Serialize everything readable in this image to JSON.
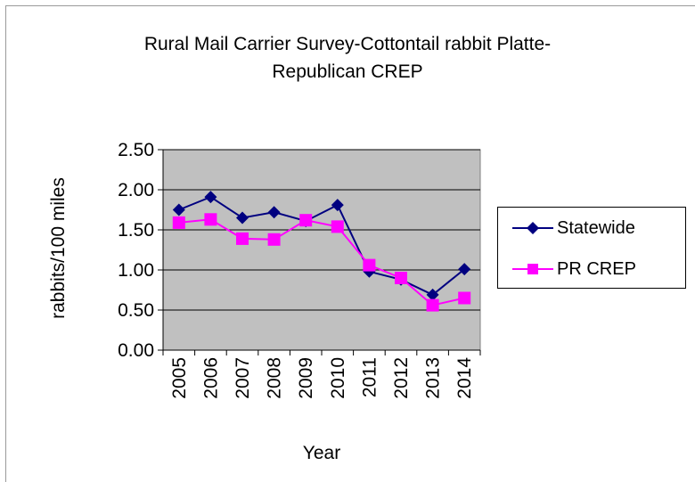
{
  "chart_data": {
    "type": "line",
    "title": "Rural Mail Carrier Survey-Cottontail rabbit    Platte-\nRepublican CREP",
    "xlabel": "Year",
    "ylabel": "rabbits/100 miles",
    "x": [
      "2005",
      "2006",
      "2007",
      "2008",
      "2009",
      "2010",
      "2011",
      "2012",
      "2013",
      "2014"
    ],
    "ylim": [
      0,
      2.5
    ],
    "yticks": [
      "0.00",
      "0.50",
      "1.00",
      "1.50",
      "2.00",
      "2.50"
    ],
    "grid": true,
    "legend_position": "right",
    "plot_background": "#c0c0c0",
    "series": [
      {
        "name": "Statewide",
        "color": "#000080",
        "marker": "diamond",
        "values": [
          1.75,
          1.91,
          1.65,
          1.72,
          1.61,
          1.81,
          0.98,
          0.88,
          0.69,
          1.01
        ]
      },
      {
        "name": "PR CREP",
        "color": "#ff00ff",
        "marker": "square",
        "values": [
          1.59,
          1.63,
          1.39,
          1.38,
          1.62,
          1.54,
          1.06,
          0.9,
          0.56,
          0.65
        ]
      }
    ]
  }
}
